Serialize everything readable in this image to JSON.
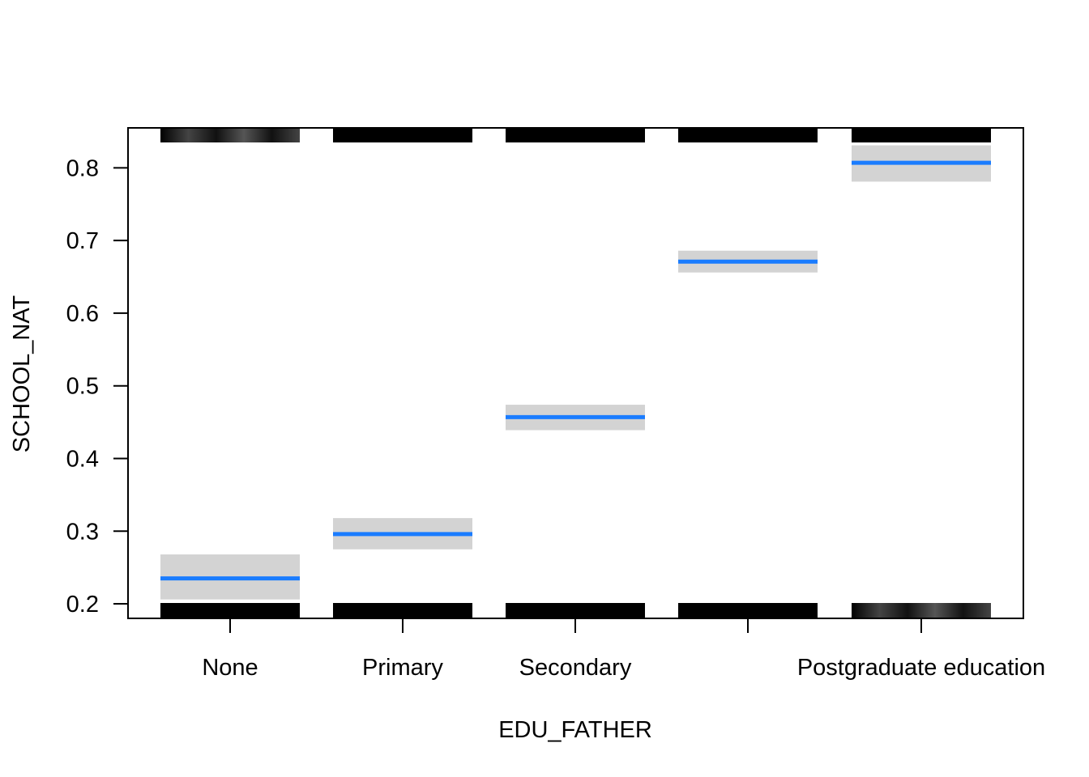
{
  "chart_data": {
    "type": "bar",
    "title": "",
    "xlabel": "EDU_FATHER",
    "ylabel": "SCHOOL_NAT",
    "categories": [
      "None",
      "Primary",
      "Secondary",
      "",
      "Postgraduate education"
    ],
    "estimate": [
      0.235,
      0.296,
      0.457,
      0.671,
      0.807
    ],
    "ci_lower": [
      0.206,
      0.275,
      0.439,
      0.656,
      0.781
    ],
    "ci_upper": [
      0.268,
      0.318,
      0.474,
      0.686,
      0.831
    ],
    "ylim": [
      0.18,
      0.855
    ],
    "yticks": [
      0.2,
      0.3,
      0.4,
      0.5,
      0.6,
      0.7,
      0.8
    ],
    "ytick_labels": [
      "0.2",
      "0.3",
      "0.4",
      "0.5",
      "0.6",
      "0.7",
      "0.8"
    ],
    "rug_top": [
      "gradient",
      "solid",
      "solid",
      "solid",
      "solid"
    ],
    "rug_bottom": [
      "solid",
      "solid",
      "solid",
      "solid",
      "gradient"
    ],
    "colors": {
      "line": "#1a7cff",
      "ci_band": "#d3d3d3",
      "rug": "#000000",
      "axis": "#000000"
    }
  }
}
